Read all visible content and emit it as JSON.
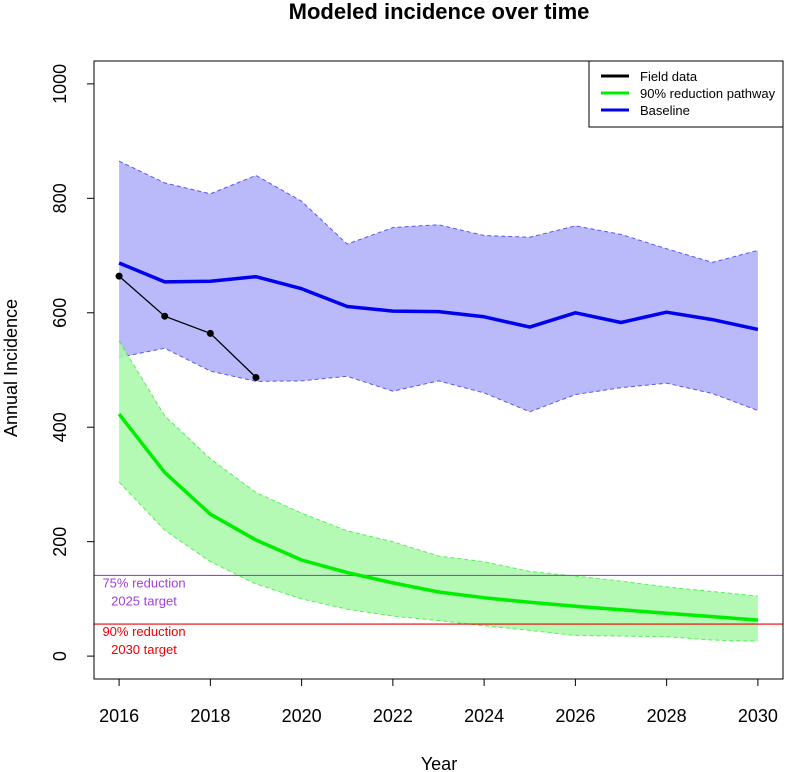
{
  "chart_data": {
    "type": "line",
    "title": "Modeled incidence over time",
    "xlabel": "Year",
    "ylabel": "Annual Incidence",
    "xlim": [
      2015.45,
      2030.55
    ],
    "ylim": [
      -40,
      1040
    ],
    "x_ticks": [
      2016,
      2018,
      2020,
      2022,
      2024,
      2026,
      2028,
      2030
    ],
    "x_tick_labels": [
      "2016",
      "2018",
      "2020",
      "2022",
      "2024",
      "2026",
      "2028",
      "2030"
    ],
    "y_ticks": [
      0,
      200,
      400,
      600,
      800,
      1000
    ],
    "y_tick_labels": [
      "0",
      "200",
      "400",
      "600",
      "800",
      "1000"
    ],
    "grid": false,
    "legend_position": "top-right",
    "x": [
      2016,
      2017,
      2018,
      2019,
      2020,
      2021,
      2022,
      2023,
      2024,
      2025,
      2026,
      2027,
      2028,
      2029,
      2030
    ],
    "series": [
      {
        "name": "Baseline",
        "color": "#0000ee",
        "band_color": "#b0b0fa",
        "values": [
          687,
          654,
          655,
          663,
          642,
          611,
          603,
          602,
          593,
          575,
          600,
          583,
          601,
          588,
          571
        ],
        "upper": [
          865,
          827,
          808,
          840,
          795,
          720,
          749,
          754,
          735,
          732,
          752,
          737,
          712,
          688,
          709
        ],
        "lower": [
          522,
          538,
          498,
          480,
          481,
          489,
          463,
          481,
          460,
          427,
          457,
          469,
          477,
          459,
          429
        ]
      },
      {
        "name": "90% reduction pathway",
        "color": "#00ee00",
        "band_color": "#aaf8aa",
        "values": [
          423,
          321,
          248,
          203,
          168,
          146,
          128,
          112,
          102,
          94,
          87,
          81,
          75,
          69,
          63
        ],
        "upper": [
          551,
          420,
          345,
          286,
          250,
          219,
          200,
          175,
          165,
          148,
          140,
          131,
          121,
          113,
          105
        ],
        "lower": [
          304,
          220,
          165,
          126,
          100,
          82,
          70,
          62,
          53,
          45,
          36,
          35,
          34,
          28,
          26
        ]
      },
      {
        "name": "Field data",
        "color": "#000000",
        "x": [
          2016,
          2017,
          2018,
          2019
        ],
        "values": [
          664,
          594,
          564,
          487
        ]
      }
    ],
    "legend": [
      {
        "label": "Field data",
        "color": "#000000"
      },
      {
        "label": "90% reduction pathway",
        "color": "#00ee00"
      },
      {
        "label": "Baseline",
        "color": "#0000ee"
      }
    ],
    "reference_lines": [
      {
        "value": 141,
        "color": "#a040e0",
        "label_line1": "75% reduction",
        "label_line2": "2025 target"
      },
      {
        "value": 56,
        "color": "#ee0000",
        "label_line1": "90% reduction",
        "label_line2": "2030 target"
      }
    ]
  }
}
